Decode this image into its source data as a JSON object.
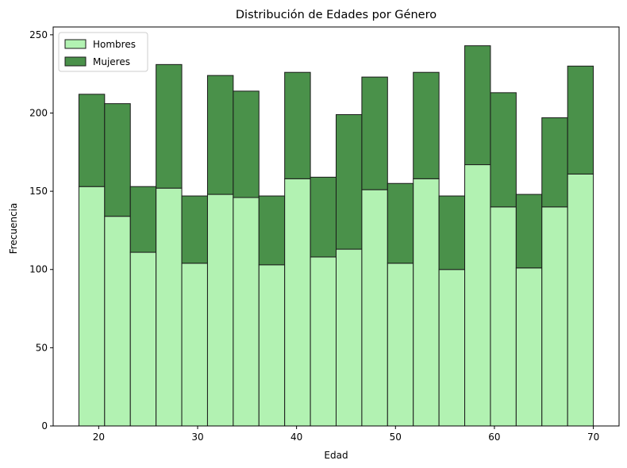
{
  "chart_data": {
    "type": "bar",
    "stacked": true,
    "title": "Distribución de Edades por Género",
    "xlabel": "Edad",
    "ylabel": "Frecuencia",
    "xlim": [
      15.4,
      72.6
    ],
    "ylim": [
      0,
      255
    ],
    "x_ticks": [
      20,
      30,
      40,
      50,
      60,
      70
    ],
    "y_ticks": [
      0,
      50,
      100,
      150,
      200,
      250
    ],
    "bin_start": 18,
    "bin_width": 2.6,
    "legend_position": "top-left",
    "grid": false,
    "series": [
      {
        "name": "Hombres",
        "color": "#b2f2b2",
        "values": [
          153,
          134,
          111,
          152,
          104,
          148,
          146,
          103,
          158,
          108,
          113,
          151,
          104,
          158,
          100,
          167,
          140,
          101,
          140,
          161
        ]
      },
      {
        "name": "Mujeres",
        "color": "#4a914a",
        "values": [
          59,
          72,
          42,
          79,
          43,
          76,
          68,
          44,
          68,
          51,
          86,
          72,
          51,
          68,
          47,
          76,
          73,
          47,
          57,
          69
        ]
      }
    ]
  }
}
